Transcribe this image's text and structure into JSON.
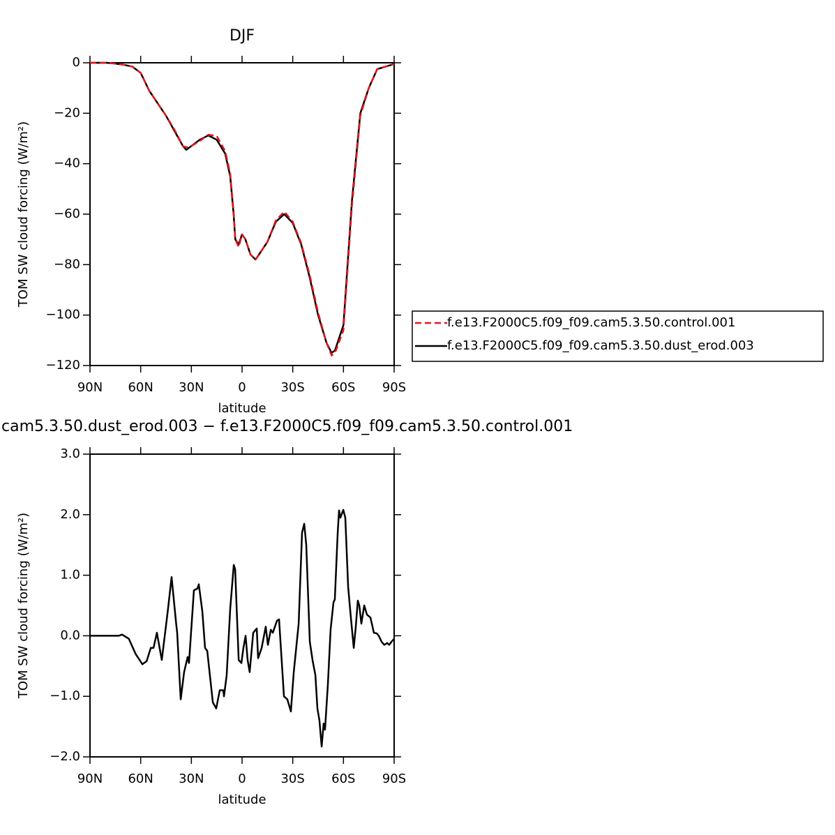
{
  "chart_data": [
    {
      "type": "line",
      "title": "DJF",
      "ylabel": "TOM SW cloud forcing (W/m²)",
      "xlabel": "latitude",
      "xlim": [
        90,
        -90
      ],
      "xticks": [
        {
          "value": 90,
          "label": "90N"
        },
        {
          "value": 60,
          "label": "60N"
        },
        {
          "value": 30,
          "label": "30N"
        },
        0,
        {
          "value": -30,
          "label": "30S"
        },
        {
          "value": -60,
          "label": "60S"
        },
        {
          "value": -90,
          "label": "90S"
        }
      ],
      "ylim": [
        -120,
        0
      ],
      "yticks": [
        0,
        {
          "value": -20,
          "label": "−20"
        },
        {
          "value": -40,
          "label": "−40"
        },
        {
          "value": -60,
          "label": "−60"
        },
        {
          "value": -80,
          "label": "−80"
        },
        {
          "value": -100,
          "label": "−100"
        },
        {
          "value": -120,
          "label": "−120"
        }
      ],
      "x": [
        90,
        85,
        80,
        75,
        70,
        65,
        60,
        55,
        50,
        45,
        40,
        35,
        33,
        30,
        25,
        20,
        15,
        10,
        7,
        5,
        4,
        2,
        0,
        -2,
        -5,
        -8,
        -10,
        -15,
        -20,
        -25,
        -30,
        -35,
        -40,
        -45,
        -50,
        -53,
        -55,
        -60,
        -65,
        -70,
        -75,
        -77,
        -80,
        -85,
        -90
      ],
      "series": [
        {
          "name": "f.e13.F2000C5.f09_f09.cam5.3.50.dust_erod.003",
          "color": "#000000",
          "line_style": "solid",
          "values": [
            0,
            0,
            0,
            -0.3,
            -0.8,
            -1.5,
            -4,
            -11,
            -16,
            -21,
            -27,
            -33,
            -34.5,
            -33,
            -30.5,
            -28.8,
            -30.5,
            -36,
            -45,
            -60,
            -70,
            -72,
            -68,
            -70,
            -76,
            -78,
            -76,
            -71,
            -63,
            -60,
            -63.5,
            -72,
            -85,
            -100,
            -111,
            -115,
            -114,
            -104,
            -55,
            -20,
            -10,
            -7,
            -2.5,
            -1.5,
            -0.5
          ]
        },
        {
          "name": "f.e13.F2000C5.f09_f09.cam5.3.50.control.001",
          "color": "#e8141b",
          "line_style": "dashed",
          "values": [
            0,
            0,
            0,
            -0.3,
            -0.8,
            -1.5,
            -4,
            -11,
            -16,
            -21,
            -26.5,
            -33,
            -33.5,
            -33,
            -31,
            -28.5,
            -29,
            -35,
            -44,
            -59,
            -70,
            -73,
            -68,
            -70,
            -76,
            -78,
            -76,
            -71,
            -62.5,
            -59,
            -63,
            -71.5,
            -84,
            -99,
            -111,
            -116,
            -115,
            -106,
            -57,
            -21,
            -10,
            -7,
            -2.5,
            -1.5,
            -0.5
          ]
        }
      ],
      "legend_order": [
        1,
        0
      ]
    },
    {
      "type": "line",
      "title": "cam5.3.50.dust_erod.003 − f.e13.F2000C5.f09_f09.cam5.3.50.control.001",
      "ylabel": "TOM SW cloud forcing (W/m²)",
      "xlabel": "latitude",
      "xlim": [
        90,
        -90
      ],
      "xticks": [
        {
          "value": 90,
          "label": "90N"
        },
        {
          "value": 60,
          "label": "60N"
        },
        {
          "value": 30,
          "label": "30N"
        },
        0,
        {
          "value": -30,
          "label": "30S"
        },
        {
          "value": -60,
          "label": "60S"
        },
        {
          "value": -90,
          "label": "90S"
        }
      ],
      "ylim": [
        -2,
        3
      ],
      "yticks": [
        {
          "value": 3,
          "label": "3.0"
        },
        {
          "value": 2,
          "label": "2.0"
        },
        {
          "value": 1,
          "label": "1.0"
        },
        {
          "value": 0,
          "label": "0.0"
        },
        {
          "value": -1,
          "label": "−1.0"
        },
        {
          "value": -2,
          "label": "−2.0"
        }
      ],
      "x": [
        90,
        73,
        71,
        67,
        63,
        59,
        56.5,
        54,
        52.4,
        50.4,
        47.5,
        44,
        41.7,
        39,
        38.4,
        36.3,
        34.3,
        32.2,
        31.4,
        28.5,
        26.4,
        25.6,
        23.5,
        21.9,
        20.6,
        17.3,
        15.3,
        13.2,
        11.1,
        10.7,
        9.1,
        7,
        4.9,
        4.1,
        2,
        0.4,
        -0.8,
        -2.1,
        -3.3,
        -4.5,
        -6.6,
        -8.7,
        -9.5,
        -11.6,
        -14,
        -15.3,
        -17,
        -18.2,
        -20.7,
        -21.9,
        -24.8,
        -26.8,
        -28.9,
        -30.6,
        -33.5,
        -35.5,
        -36.8,
        -38,
        -40.1,
        -41.7,
        -43.4,
        -44.6,
        -45.8,
        -47.1,
        -48.3,
        -49.1,
        -50.8,
        -52.4,
        -54.1,
        -54.9,
        -56.6,
        -57.4,
        -58.2,
        -59.9,
        -61.1,
        -62.8,
        -64.4,
        -66.1,
        -67.3,
        -68.5,
        -69.4,
        -70.6,
        -72.3,
        -73.9,
        -76,
        -78,
        -79.7,
        -80.9,
        -82.6,
        -84.2,
        -85.9,
        -87.1,
        -88.4,
        -90
      ],
      "series": [
        {
          "color": "#000000",
          "line_style": "solid",
          "values": [
            0,
            0,
            0.02,
            -0.05,
            -0.3,
            -0.47,
            -0.42,
            -0.2,
            -0.2,
            0.05,
            -0.4,
            0.4,
            0.97,
            0.2,
            0.05,
            -1.05,
            -0.6,
            -0.35,
            -0.45,
            0.75,
            0.78,
            0.85,
            0.4,
            -0.2,
            -0.25,
            -1.1,
            -1.2,
            -0.9,
            -0.9,
            -1.0,
            -0.65,
            0.45,
            1.17,
            1.1,
            -0.4,
            -0.45,
            -0.2,
            0,
            -0.4,
            -0.6,
            0.05,
            0.12,
            -0.37,
            -0.2,
            0.15,
            -0.15,
            0.1,
            0.05,
            0.25,
            0.27,
            -1.0,
            -1.05,
            -1.25,
            -0.6,
            0.2,
            1.7,
            1.85,
            1.5,
            -0.1,
            -0.4,
            -0.65,
            -1.2,
            -1.4,
            -1.83,
            -1.45,
            -1.55,
            -0.8,
            0.1,
            0.55,
            0.6,
            1.7,
            2.07,
            1.95,
            2.08,
            1.95,
            0.8,
            0.3,
            -0.2,
            0.15,
            0.58,
            0.5,
            0.2,
            0.5,
            0.35,
            0.3,
            0.05,
            0.04,
            0,
            -0.1,
            -0.15,
            -0.12,
            -0.15,
            -0.1,
            -0.05
          ]
        }
      ]
    }
  ]
}
